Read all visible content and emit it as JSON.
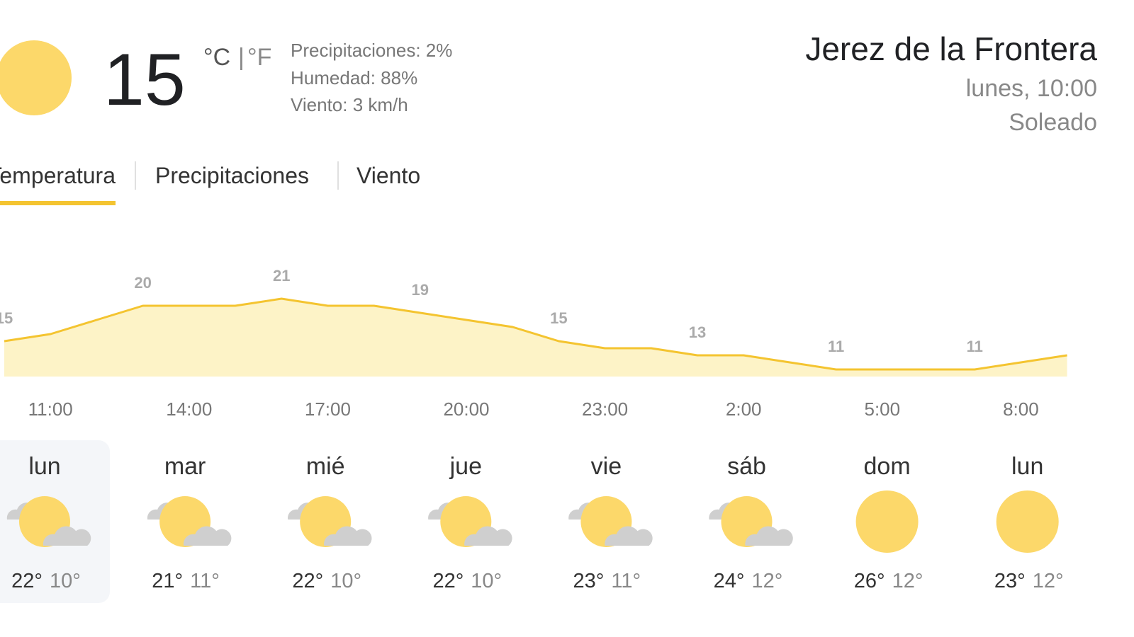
{
  "current": {
    "temperature": "15",
    "unit_c": "°C",
    "unit_sep": "|",
    "unit_f": "°F",
    "details": [
      "Precipitaciones: 2%",
      "Humedad: 88%",
      "Viento: 3 km/h"
    ]
  },
  "location": {
    "name": "Jerez de la Frontera",
    "time": "lunes, 10:00",
    "condition": "Soleado"
  },
  "tabs": [
    "Temperatura",
    "Precipitaciones",
    "Viento"
  ],
  "chart_data": {
    "type": "area",
    "color": "#f4c430",
    "fill": "#fdf3c7",
    "categories": [
      null,
      "11:00",
      null,
      null,
      "14:00",
      null,
      null,
      "17:00",
      null,
      null,
      "20:00",
      null,
      null,
      "23:00",
      null,
      null,
      "2:00",
      null,
      null,
      "5:00",
      null,
      null,
      "8:00",
      null
    ],
    "values": [
      15,
      16,
      18,
      20,
      20,
      20,
      21,
      20,
      20,
      19,
      18,
      17,
      15,
      14,
      14,
      13,
      13,
      12,
      11,
      11,
      11,
      11,
      12,
      13
    ],
    "ylim": [
      10,
      25
    ]
  },
  "forecast": [
    {
      "day": "lun",
      "high": "22°",
      "low": "10°",
      "icon": "partly-cloudy"
    },
    {
      "day": "mar",
      "high": "21°",
      "low": "11°",
      "icon": "partly-cloudy"
    },
    {
      "day": "mié",
      "high": "22°",
      "low": "10°",
      "icon": "partly-cloudy"
    },
    {
      "day": "jue",
      "high": "22°",
      "low": "10°",
      "icon": "partly-cloudy"
    },
    {
      "day": "vie",
      "high": "23°",
      "low": "11°",
      "icon": "partly-cloudy"
    },
    {
      "day": "sáb",
      "high": "24°",
      "low": "12°",
      "icon": "partly-cloudy"
    },
    {
      "day": "dom",
      "high": "26°",
      "low": "12°",
      "icon": "sunny"
    },
    {
      "day": "lun",
      "high": "23°",
      "low": "12°",
      "icon": "sunny"
    }
  ]
}
